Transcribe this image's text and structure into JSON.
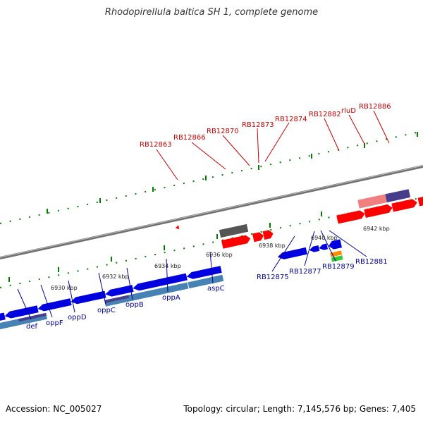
{
  "title": "Rhodopirellula baltica SH 1, complete genome",
  "footer": {
    "accession": "Accession: NC_005027",
    "topology": "Topology: circular; Length: 7,145,576 bp; Genes: 7,405"
  },
  "colors": {
    "forward_gene": "#ff0000",
    "reverse_gene": "#0000e0",
    "forward_cds_light": "#f08080",
    "reverse_cds_light": "#4682b4",
    "cds_dark": "#483d8b",
    "other_gene": "#555555",
    "backbone": "#808080",
    "tick_minor": "#008000"
  },
  "scale_labels": [
    "6930 kbp",
    "6932 kbp",
    "6934 kbp",
    "6936 kbp",
    "6938 kbp",
    "6940 kbp",
    "6942 kbp"
  ],
  "forward_labels": [
    "RB12863",
    "RB12866",
    "RB12870",
    "RB12873",
    "RB12874",
    "RB12882",
    "rluD",
    "RB12886"
  ],
  "reverse_labels": [
    "def",
    "oppF",
    "oppD",
    "oppC",
    "oppB",
    "oppA",
    "aspC",
    "RB12875",
    "RB12877",
    "RB12879",
    "RB12881"
  ]
}
